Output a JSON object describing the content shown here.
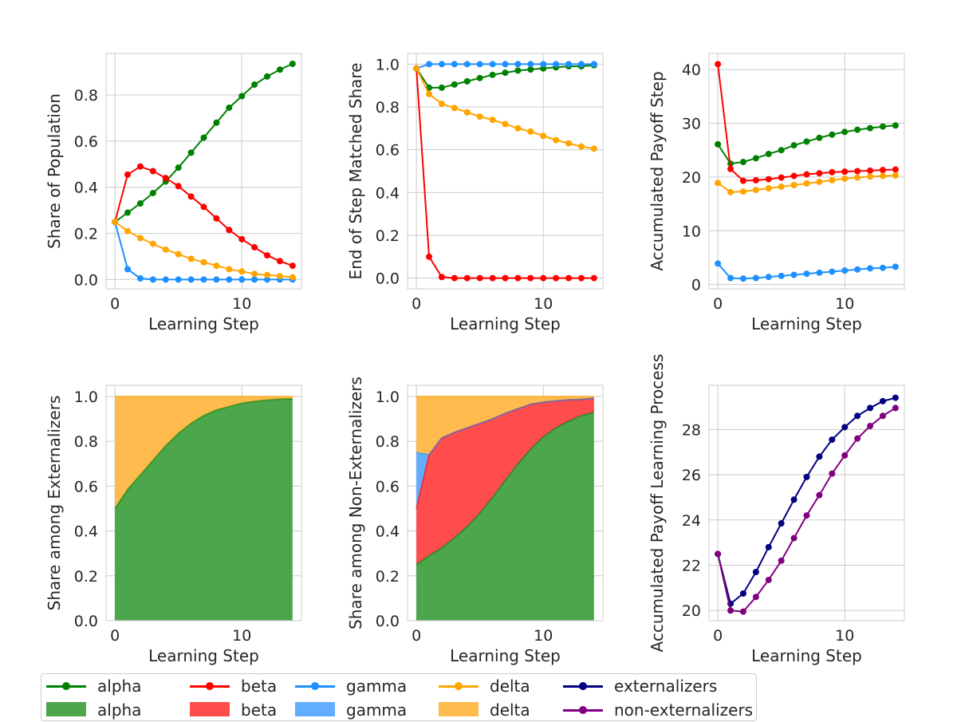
{
  "colors": {
    "alpha": "#008000",
    "beta": "#ff0000",
    "gamma": "#1e90ff",
    "delta": "#ffa500",
    "externalizers": "#000080",
    "non_externalizers": "#800080",
    "alpha_fill": "#4ca64c",
    "beta_fill": "#ff4d4d",
    "gamma_fill": "#63adff",
    "delta_fill": "#ffbb4d"
  },
  "chart_data": [
    {
      "type": "line",
      "xlabel": "Learning Step",
      "ylabel": "Share of Population",
      "xlim": [
        -0.7,
        14.7
      ],
      "ylim": [
        -0.04,
        0.98
      ],
      "xticks": [
        0,
        10
      ],
      "yticks": [
        0.0,
        0.2,
        0.4,
        0.6,
        0.8
      ],
      "x": [
        0,
        1,
        2,
        3,
        4,
        5,
        6,
        7,
        8,
        9,
        10,
        11,
        12,
        13,
        14
      ],
      "series": [
        {
          "name": "alpha",
          "color_key": "alpha",
          "values": [
            0.25,
            0.29,
            0.33,
            0.375,
            0.425,
            0.485,
            0.55,
            0.615,
            0.68,
            0.745,
            0.795,
            0.845,
            0.88,
            0.91,
            0.935
          ]
        },
        {
          "name": "beta",
          "color_key": "beta",
          "values": [
            0.25,
            0.455,
            0.49,
            0.47,
            0.44,
            0.405,
            0.36,
            0.315,
            0.265,
            0.215,
            0.175,
            0.14,
            0.105,
            0.08,
            0.06
          ]
        },
        {
          "name": "gamma",
          "color_key": "gamma",
          "values": [
            0.25,
            0.045,
            0.005,
            0.0,
            0.0,
            0.0,
            0.0,
            0.0,
            0.0,
            0.0,
            0.0,
            0.0,
            0.0,
            0.0,
            0.0
          ]
        },
        {
          "name": "delta",
          "color_key": "delta",
          "values": [
            0.25,
            0.21,
            0.18,
            0.155,
            0.13,
            0.11,
            0.09,
            0.075,
            0.06,
            0.045,
            0.035,
            0.025,
            0.02,
            0.015,
            0.01
          ]
        }
      ]
    },
    {
      "type": "line",
      "xlabel": "Learning Step",
      "ylabel": "End of Step Matched Share",
      "xlim": [
        -0.7,
        14.7
      ],
      "ylim": [
        -0.05,
        1.05
      ],
      "xticks": [
        0,
        10
      ],
      "yticks": [
        0.0,
        0.2,
        0.4,
        0.6,
        0.8,
        1.0
      ],
      "x": [
        0,
        1,
        2,
        3,
        4,
        5,
        6,
        7,
        8,
        9,
        10,
        11,
        12,
        13,
        14
      ],
      "series": [
        {
          "name": "alpha",
          "color_key": "alpha",
          "values": [
            0.98,
            0.89,
            0.89,
            0.905,
            0.92,
            0.935,
            0.95,
            0.96,
            0.97,
            0.975,
            0.98,
            0.985,
            0.99,
            0.99,
            0.995
          ]
        },
        {
          "name": "beta",
          "color_key": "beta",
          "values": [
            0.98,
            0.1,
            0.005,
            0.0,
            0.0,
            0.0,
            0.0,
            0.0,
            0.0,
            0.0,
            0.0,
            0.0,
            0.0,
            0.0,
            0.0
          ]
        },
        {
          "name": "gamma",
          "color_key": "gamma",
          "values": [
            0.98,
            1.0,
            1.0,
            1.0,
            1.0,
            1.0,
            1.0,
            1.0,
            1.0,
            1.0,
            1.0,
            1.0,
            1.0,
            1.0,
            1.0
          ]
        },
        {
          "name": "delta",
          "color_key": "delta",
          "values": [
            0.98,
            0.86,
            0.815,
            0.795,
            0.775,
            0.755,
            0.74,
            0.72,
            0.7,
            0.685,
            0.665,
            0.645,
            0.63,
            0.615,
            0.605
          ]
        }
      ]
    },
    {
      "type": "line",
      "xlabel": "Learning Step",
      "ylabel": "Accumulated Payoff Step",
      "xlim": [
        -0.7,
        14.7
      ],
      "ylim": [
        -0.8,
        43.0
      ],
      "xticks": [
        0,
        10
      ],
      "yticks": [
        0,
        10,
        20,
        30,
        40
      ],
      "x": [
        0,
        1,
        2,
        3,
        4,
        5,
        6,
        7,
        8,
        9,
        10,
        11,
        12,
        13,
        14
      ],
      "series": [
        {
          "name": "alpha",
          "color_key": "alpha",
          "values": [
            26.1,
            22.5,
            22.8,
            23.5,
            24.3,
            25.0,
            25.9,
            26.6,
            27.3,
            27.9,
            28.4,
            28.8,
            29.1,
            29.4,
            29.6
          ]
        },
        {
          "name": "beta",
          "color_key": "beta",
          "values": [
            41.0,
            21.5,
            19.3,
            19.4,
            19.6,
            19.9,
            20.2,
            20.5,
            20.7,
            20.9,
            21.0,
            21.1,
            21.2,
            21.3,
            21.4
          ]
        },
        {
          "name": "gamma",
          "color_key": "gamma",
          "values": [
            3.9,
            1.2,
            1.1,
            1.2,
            1.4,
            1.6,
            1.8,
            2.0,
            2.2,
            2.4,
            2.6,
            2.8,
            3.0,
            3.1,
            3.3
          ]
        },
        {
          "name": "delta",
          "color_key": "delta",
          "values": [
            18.9,
            17.2,
            17.3,
            17.6,
            17.9,
            18.2,
            18.5,
            18.8,
            19.1,
            19.4,
            19.7,
            19.9,
            20.1,
            20.2,
            20.3
          ]
        }
      ]
    },
    {
      "type": "area",
      "xlabel": "Learning Step",
      "ylabel": "Share among Externalizers",
      "xlim": [
        -0.7,
        14.7
      ],
      "ylim": [
        0.0,
        1.05
      ],
      "xticks": [
        0,
        10
      ],
      "yticks": [
        0.0,
        0.2,
        0.4,
        0.6,
        0.8,
        1.0
      ],
      "x": [
        0,
        1,
        2,
        3,
        4,
        5,
        6,
        7,
        8,
        9,
        10,
        11,
        12,
        13,
        14
      ],
      "stacked": true,
      "series": [
        {
          "name": "alpha",
          "color_key": "alpha",
          "values": [
            0.5,
            0.585,
            0.65,
            0.715,
            0.78,
            0.835,
            0.88,
            0.915,
            0.94,
            0.955,
            0.97,
            0.978,
            0.984,
            0.988,
            0.99
          ]
        },
        {
          "name": "delta",
          "color_key": "delta",
          "values": [
            0.5,
            0.415,
            0.35,
            0.285,
            0.22,
            0.165,
            0.12,
            0.085,
            0.06,
            0.045,
            0.03,
            0.022,
            0.016,
            0.012,
            0.01
          ]
        }
      ]
    },
    {
      "type": "area",
      "xlabel": "Learning Step",
      "ylabel": "Share among Non-Externalizers",
      "xlim": [
        -0.7,
        14.7
      ],
      "ylim": [
        0.0,
        1.05
      ],
      "xticks": [
        0,
        10
      ],
      "yticks": [
        0.0,
        0.2,
        0.4,
        0.6,
        0.8,
        1.0
      ],
      "x": [
        0,
        1,
        2,
        3,
        4,
        5,
        6,
        7,
        8,
        9,
        10,
        11,
        12,
        13,
        14
      ],
      "stacked": true,
      "series": [
        {
          "name": "alpha",
          "color_key": "alpha",
          "values": [
            0.25,
            0.29,
            0.325,
            0.37,
            0.42,
            0.48,
            0.55,
            0.625,
            0.7,
            0.765,
            0.82,
            0.86,
            0.89,
            0.915,
            0.93
          ]
        },
        {
          "name": "beta",
          "color_key": "beta",
          "values": [
            0.25,
            0.45,
            0.49,
            0.47,
            0.44,
            0.4,
            0.35,
            0.3,
            0.245,
            0.2,
            0.155,
            0.12,
            0.095,
            0.072,
            0.062
          ]
        },
        {
          "name": "gamma",
          "color_key": "gamma",
          "values": [
            0.25,
            0.0,
            0.0,
            0.0,
            0.0,
            0.0,
            0.0,
            0.0,
            0.0,
            0.0,
            0.0,
            0.0,
            0.0,
            0.0,
            0.0
          ]
        },
        {
          "name": "delta",
          "color_key": "delta",
          "values": [
            0.25,
            0.26,
            0.185,
            0.16,
            0.14,
            0.12,
            0.1,
            0.075,
            0.055,
            0.035,
            0.025,
            0.02,
            0.015,
            0.013,
            0.008
          ]
        }
      ]
    },
    {
      "type": "line",
      "xlabel": "Learning Step",
      "ylabel": "Accumulated Payoff Learning Process",
      "xlim": [
        -0.7,
        14.7
      ],
      "ylim": [
        19.55,
        29.95
      ],
      "xticks": [
        0,
        10
      ],
      "yticks": [
        20,
        22,
        24,
        26,
        28
      ],
      "x": [
        0,
        1,
        2,
        3,
        4,
        5,
        6,
        7,
        8,
        9,
        10,
        11,
        12,
        13,
        14
      ],
      "series": [
        {
          "name": "externalizers",
          "color_key": "externalizers",
          "values": [
            22.5,
            20.3,
            20.75,
            21.7,
            22.8,
            23.85,
            24.9,
            25.9,
            26.8,
            27.55,
            28.1,
            28.6,
            28.95,
            29.25,
            29.4
          ]
        },
        {
          "name": "non-externalizers",
          "color_key": "non_externalizers",
          "values": [
            22.5,
            20.0,
            19.95,
            20.6,
            21.35,
            22.2,
            23.2,
            24.2,
            25.1,
            26.05,
            26.85,
            27.6,
            28.15,
            28.6,
            28.95
          ]
        }
      ]
    }
  ],
  "legend": {
    "items": [
      {
        "label": "alpha",
        "kind": "line",
        "color_key": "alpha"
      },
      {
        "label": "beta",
        "kind": "line",
        "color_key": "beta"
      },
      {
        "label": "gamma",
        "kind": "line",
        "color_key": "gamma"
      },
      {
        "label": "delta",
        "kind": "line",
        "color_key": "delta"
      },
      {
        "label": "externalizers",
        "kind": "line",
        "color_key": "externalizers"
      },
      {
        "label": "alpha",
        "kind": "patch",
        "color_key": "alpha_fill"
      },
      {
        "label": "beta",
        "kind": "patch",
        "color_key": "beta_fill"
      },
      {
        "label": "gamma",
        "kind": "patch",
        "color_key": "gamma_fill"
      },
      {
        "label": "delta",
        "kind": "patch",
        "color_key": "delta_fill"
      },
      {
        "label": "non-externalizers",
        "kind": "line",
        "color_key": "non_externalizers"
      }
    ]
  }
}
